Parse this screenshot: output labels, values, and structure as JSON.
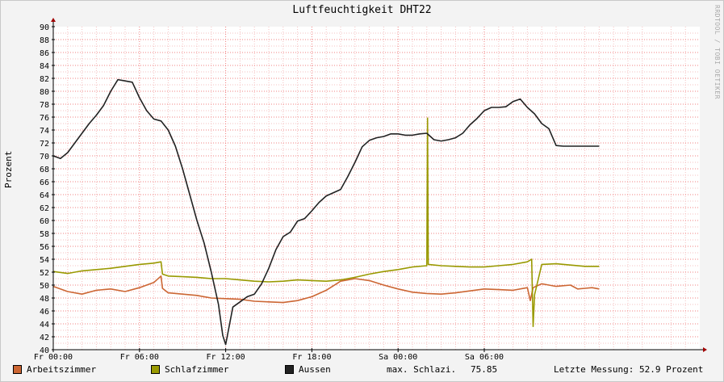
{
  "title": "Luftfeuchtigkeit DHT22",
  "watermark": "RRDTOOL / TOBI OETIKER",
  "colors": {
    "Arbeitszimmer": "#cc6633",
    "Schlafzimmer": "#999900",
    "Aussen": "#222222",
    "grid_major": "#f08080",
    "grid_minor": "#f4c0c0",
    "axis": "#a00000"
  },
  "legend": {
    "stat_label": "max. Schlazi.",
    "stat_value": "75.85",
    "last_label": "Letzte Messung: 52.9 Prozent"
  },
  "chart_data": {
    "type": "line",
    "title": "Luftfeuchtigkeit DHT22",
    "xlabel": "",
    "ylabel": "Prozent",
    "ylim": [
      40,
      90
    ],
    "xlim": [
      0,
      45
    ],
    "x_unit": "hours since Fr 00:00",
    "grid": true,
    "legend_position": "bottom",
    "y_ticks": [
      40,
      42,
      44,
      46,
      48,
      50,
      52,
      54,
      56,
      58,
      60,
      62,
      64,
      66,
      68,
      70,
      72,
      74,
      76,
      78,
      80,
      82,
      84,
      86,
      88,
      90
    ],
    "x_ticks": [
      {
        "x": 0,
        "label": "Fr 00:00"
      },
      {
        "x": 6,
        "label": "Fr 06:00"
      },
      {
        "x": 12,
        "label": "Fr 12:00"
      },
      {
        "x": 18,
        "label": "Fr 18:00"
      },
      {
        "x": 24,
        "label": "Sa 00:00"
      },
      {
        "x": 30,
        "label": "Sa 06:00"
      }
    ],
    "series": [
      {
        "name": "Arbeitszimmer",
        "x": [
          0,
          1,
          2,
          3,
          4,
          5,
          6,
          7,
          7.5,
          7.6,
          8,
          9,
          10,
          11,
          12,
          13,
          14,
          15,
          16,
          17,
          18,
          19,
          20,
          21,
          22,
          23,
          24,
          25,
          26,
          27,
          28,
          29,
          30,
          31,
          32,
          33,
          33.2,
          33.4,
          34,
          35,
          36,
          36.5,
          37,
          37.5,
          38
        ],
        "y": [
          49.8,
          49,
          48.6,
          49.2,
          49.4,
          49,
          49.6,
          50.4,
          51.4,
          49.5,
          48.8,
          48.6,
          48.4,
          48,
          47.9,
          47.8,
          47.5,
          47.4,
          47.3,
          47.6,
          48.2,
          49.2,
          50.6,
          51,
          50.7,
          50,
          49.4,
          48.9,
          48.7,
          48.6,
          48.8,
          49.1,
          49.4,
          49.3,
          49.2,
          49.6,
          47.6,
          49.6,
          50.2,
          49.8,
          50,
          49.4,
          49.5,
          49.6,
          49.4
        ]
      },
      {
        "name": "Schlafzimmer",
        "x": [
          0,
          1,
          2,
          3,
          4,
          5,
          6,
          7,
          7.5,
          7.6,
          8,
          9,
          10,
          11,
          12,
          13,
          14,
          15,
          16,
          17,
          18,
          19,
          20,
          21,
          22,
          23,
          24,
          25,
          26,
          26.05,
          26.1,
          27,
          28,
          29,
          30,
          31,
          32,
          33,
          33.3,
          33.4,
          33.5,
          34,
          35,
          36,
          37,
          38
        ],
        "y": [
          52.1,
          51.8,
          52.2,
          52.4,
          52.6,
          52.9,
          53.2,
          53.4,
          53.6,
          51.7,
          51.4,
          51.3,
          51.2,
          51,
          51,
          50.8,
          50.6,
          50.5,
          50.6,
          50.8,
          50.7,
          50.6,
          50.8,
          51.2,
          51.7,
          52.1,
          52.4,
          52.8,
          53,
          75.85,
          53.2,
          53,
          52.9,
          52.8,
          52.8,
          53,
          53.2,
          53.6,
          54,
          43.6,
          48.5,
          53.2,
          53.3,
          53.1,
          52.9,
          52.9
        ]
      },
      {
        "name": "Aussen",
        "x": [
          0,
          0.5,
          1,
          1.5,
          2,
          2.5,
          3,
          3.5,
          4,
          4.5,
          5,
          5.5,
          6,
          6.5,
          7,
          7.5,
          8,
          8.5,
          9,
          9.5,
          10,
          10.5,
          11,
          11.5,
          11.8,
          12,
          12.5,
          13,
          13.5,
          14,
          14.5,
          15,
          15.5,
          16,
          16.5,
          17,
          17.5,
          18,
          18.5,
          19,
          19.5,
          20,
          20.5,
          21,
          21.5,
          22,
          22.5,
          23,
          23.5,
          24,
          24.5,
          25,
          25.5,
          26,
          26.5,
          27,
          27.5,
          28,
          28.5,
          29,
          29.5,
          30,
          30.5,
          31,
          31.5,
          32,
          32.5,
          33,
          33.5,
          34,
          34.5,
          35,
          35.5,
          36,
          36.5,
          37,
          37.5,
          38
        ],
        "y": [
          70,
          69.6,
          70.5,
          72,
          73.5,
          75,
          76.3,
          77.8,
          80,
          81.8,
          81.6,
          81.4,
          79,
          77,
          75.7,
          75.4,
          74,
          71.5,
          68,
          64,
          60,
          56.5,
          52,
          47,
          42.2,
          40.8,
          46.6,
          47.4,
          48.2,
          48.6,
          50.2,
          52.6,
          55.5,
          57.5,
          58.2,
          59.9,
          60.3,
          61.5,
          62.8,
          63.8,
          64.3,
          64.8,
          66.8,
          69,
          71.4,
          72.4,
          72.8,
          73,
          73.4,
          73.4,
          73.2,
          73.2,
          73.4,
          73.5,
          72.5,
          72.3,
          72.5,
          72.8,
          73.5,
          74.8,
          75.8,
          77,
          77.5,
          77.5,
          77.6,
          78.4,
          78.8,
          77.5,
          76.5,
          75,
          74.2,
          71.6,
          71.5,
          71.5,
          71.5,
          71.5,
          71.5,
          71.5
        ]
      }
    ]
  }
}
